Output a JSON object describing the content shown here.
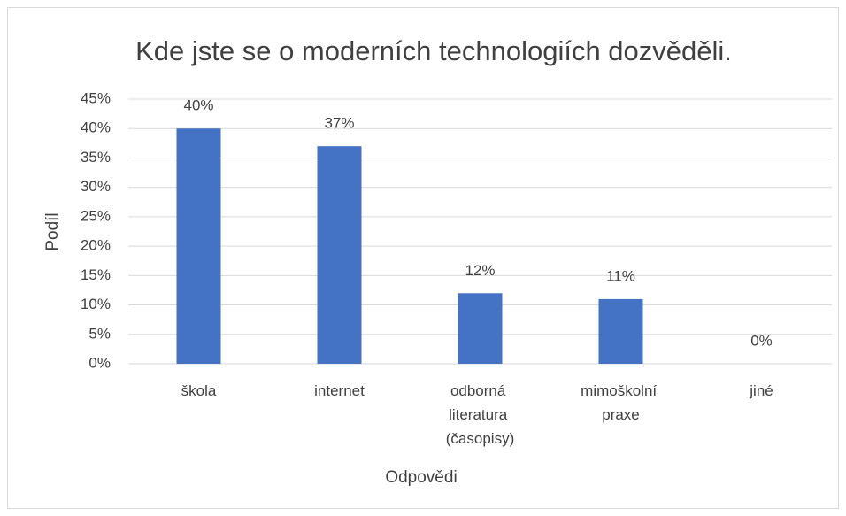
{
  "chart_data": {
    "type": "bar",
    "title": "Kde jste se o moderních technologiích dozvěděli.",
    "xlabel": "Odpovědi",
    "ylabel": "Podíl",
    "categories": [
      "škola",
      "internet",
      "odborná literatura (časopisy)",
      "mimoškolní praxe",
      "jiné"
    ],
    "values": [
      40,
      37,
      12,
      11,
      0
    ],
    "value_labels": [
      "40%",
      "37%",
      "12%",
      "11%",
      "0%"
    ],
    "color": "#4472c4",
    "ylim": [
      0,
      45
    ],
    "yticks": [
      {
        "value": 0,
        "label": "0%"
      },
      {
        "value": 5,
        "label": "5%"
      },
      {
        "value": 10,
        "label": "10%"
      },
      {
        "value": 15,
        "label": "15%"
      },
      {
        "value": 20,
        "label": "20%"
      },
      {
        "value": 25,
        "label": "25%"
      },
      {
        "value": 30,
        "label": "30%"
      },
      {
        "value": 35,
        "label": "35%"
      },
      {
        "value": 40,
        "label": "40%"
      },
      {
        "value": 45,
        "label": "45%"
      }
    ],
    "grid": true
  }
}
